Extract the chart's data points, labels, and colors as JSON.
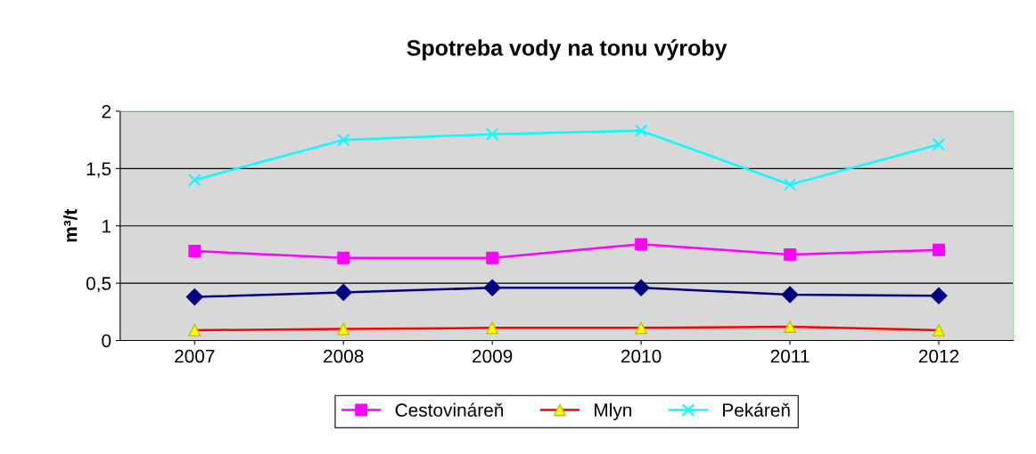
{
  "chart_data": {
    "type": "line",
    "title": "Spotreba vody na tonu výroby",
    "ylabel": "m³/t",
    "categories": [
      "2007",
      "2008",
      "2009",
      "2010",
      "2011",
      "2012"
    ],
    "series": [
      {
        "color": "#000080",
        "marker": "diamond",
        "values": [
          0.38,
          0.42,
          0.46,
          0.46,
          0.4,
          0.39
        ]
      },
      {
        "name": "Cestovináreň",
        "color": "#ff00ff",
        "marker": "square",
        "values": [
          0.78,
          0.72,
          0.72,
          0.84,
          0.75,
          0.79
        ]
      },
      {
        "name": "Mlyn",
        "color": "#ff0000",
        "marker": "triangle",
        "values": [
          0.09,
          0.1,
          0.11,
          0.11,
          0.12,
          0.09
        ]
      },
      {
        "name": "Pekáreň",
        "color": "#00ffff",
        "marker": "cross",
        "values": [
          1.4,
          1.75,
          1.8,
          1.83,
          1.36,
          1.71
        ]
      }
    ],
    "ylim": [
      0,
      2
    ],
    "yticks": [
      0,
      {
        "value": 0.5,
        "label": "0,5"
      },
      1,
      {
        "value": 1.5,
        "label": "1,5"
      },
      2
    ],
    "grid": "y",
    "legend": "bottom"
  }
}
